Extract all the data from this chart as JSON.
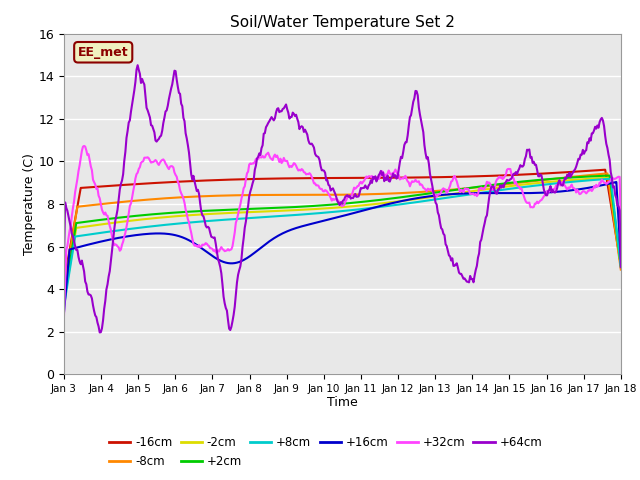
{
  "title": "Soil/Water Temperature Set 2",
  "xlabel": "Time",
  "ylabel": "Temperature (C)",
  "ylim": [
    0,
    16
  ],
  "xlim": [
    0,
    15
  ],
  "xtick_labels": [
    "Jan 3",
    "Jan 4",
    "Jan 5",
    "Jan 6",
    "Jan 7",
    "Jan 8",
    "Jan 9",
    "Jan 10",
    "Jan 11",
    "Jan 12",
    "Jan 13",
    "Jan 14",
    "Jan 15",
    "Jan 16",
    "Jan 17",
    "Jan 18"
  ],
  "ytick_vals": [
    0,
    2,
    4,
    6,
    8,
    10,
    12,
    14,
    16
  ],
  "bg_color": "#e8e8e8",
  "annotation_text": "EE_met",
  "annotation_bg": "#f0f0c0",
  "annotation_border": "#8b0000",
  "series": {
    "-16cm": {
      "color": "#cc1100",
      "lw": 1.5
    },
    "-8cm": {
      "color": "#ff8800",
      "lw": 1.5
    },
    "-2cm": {
      "color": "#dddd00",
      "lw": 1.5
    },
    "+2cm": {
      "color": "#00cc00",
      "lw": 1.5
    },
    "+8cm": {
      "color": "#00cccc",
      "lw": 1.5
    },
    "+16cm": {
      "color": "#0000cc",
      "lw": 1.5
    },
    "+32cm": {
      "color": "#ff44ff",
      "lw": 1.5
    },
    "+64cm": {
      "color": "#9900cc",
      "lw": 1.5
    }
  },
  "legend_order": [
    "-16cm",
    "-8cm",
    "-2cm",
    "+2cm",
    "+8cm",
    "+16cm",
    "+32cm",
    "+64cm"
  ]
}
